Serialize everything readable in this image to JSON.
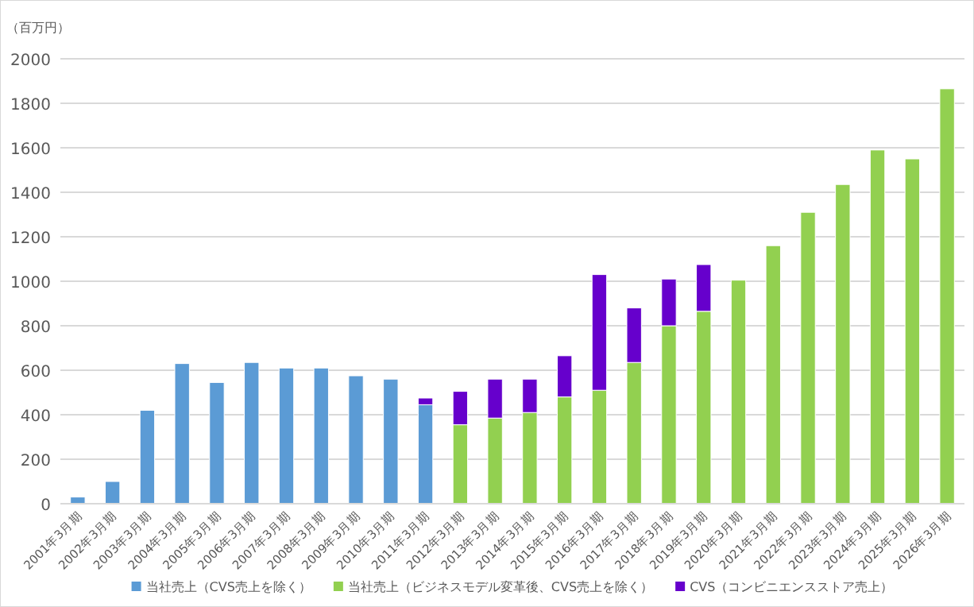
{
  "chart_data": {
    "type": "bar",
    "stacked": true,
    "ylabel": "（百万円）",
    "categories": [
      "2001年3月期",
      "2002年3月期",
      "2003年3月期",
      "2004年3月期",
      "2005年3月期",
      "2006年3月期",
      "2007年3月期",
      "2008年3月期",
      "2009年3月期",
      "2010年3月期",
      "2011年3月期",
      "2012年3月期",
      "2013年3月期",
      "2014年3月期",
      "2015年3月期",
      "2016年3月期",
      "2017年3月期",
      "2018年3月期",
      "2019年3月期",
      "2020年3月期",
      "2021年3月期",
      "2022年3月期",
      "2023年3月期",
      "2024年3月期",
      "2025年3月期",
      "2026年3月期"
    ],
    "series": [
      {
        "name": "当社売上（CVS売上を除く）",
        "color": "#5b9bd5",
        "values": [
          30,
          100,
          420,
          630,
          545,
          635,
          610,
          610,
          575,
          560,
          445,
          null,
          null,
          null,
          null,
          null,
          null,
          null,
          null,
          null,
          null,
          null,
          null,
          null,
          null,
          null
        ]
      },
      {
        "name": "当社売上（ビジネスモデル変革後、CVS売上を除く）",
        "color": "#92d050",
        "values": [
          null,
          null,
          null,
          null,
          null,
          null,
          null,
          null,
          null,
          null,
          null,
          355,
          385,
          410,
          480,
          510,
          635,
          800,
          865,
          1005,
          1160,
          1310,
          1435,
          1590,
          1550,
          1865
        ]
      },
      {
        "name": "CVS（コンビニエンスストア売上）",
        "color": "#6600cc",
        "values": [
          null,
          null,
          null,
          null,
          null,
          null,
          null,
          null,
          null,
          null,
          30,
          150,
          175,
          150,
          185,
          520,
          245,
          210,
          210,
          null,
          null,
          null,
          null,
          null,
          null,
          null
        ]
      }
    ],
    "ylim": [
      0,
      2000
    ],
    "yticks": [
      0,
      200,
      400,
      600,
      800,
      1000,
      1200,
      1400,
      1600,
      1800,
      2000
    ],
    "grid": "y",
    "legend": "bottom"
  }
}
